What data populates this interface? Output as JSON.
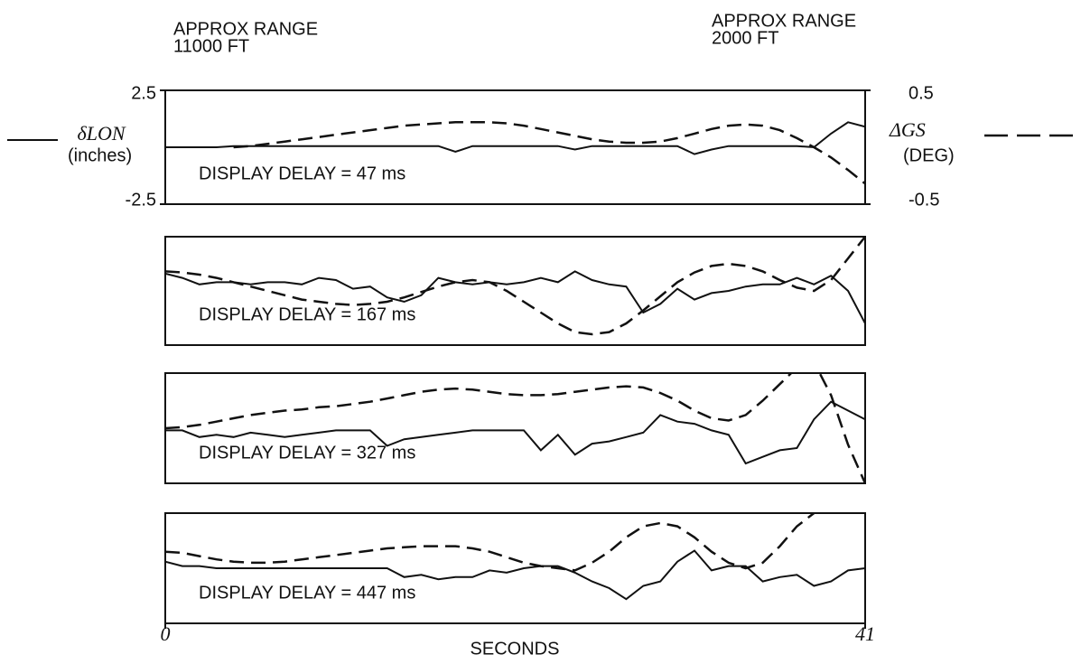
{
  "chart_data": [
    {
      "type": "line",
      "annotations": [
        "APPROX RANGE",
        "11000 FT",
        "APPROX RANGE",
        "2000 FT"
      ],
      "annotation": "DISPLAY DELAY = 47 ms",
      "ylabel": "(inches)",
      "y2label": "(DEG)",
      "xlim": [
        0,
        41
      ],
      "ylim": [
        -2.5,
        2.5
      ],
      "yticks": [
        -2.5,
        2.5
      ],
      "y2lim": [
        -0.5,
        0.5
      ],
      "y2ticks": [
        -0.5,
        0.5
      ],
      "x": [
        0,
        1,
        2,
        3,
        4,
        5,
        6,
        7,
        8,
        9,
        10,
        11,
        12,
        13,
        14,
        15,
        16,
        17,
        18,
        19,
        20,
        21,
        22,
        23,
        24,
        25,
        26,
        27,
        28,
        29,
        30,
        31,
        32,
        33,
        34,
        35,
        36,
        37,
        38,
        39,
        40,
        41
      ],
      "series": [
        {
          "name": "δLON",
          "color": "#111111",
          "line_style": "solid",
          "values": [
            0,
            0,
            0,
            0,
            0.05,
            0.05,
            0.05,
            0.05,
            0.05,
            0.05,
            0.05,
            0.05,
            0.05,
            0.05,
            0.05,
            0.05,
            0.05,
            -0.2,
            0.05,
            0.05,
            0.05,
            0.05,
            0.05,
            0.05,
            -0.1,
            0.05,
            0.05,
            0.05,
            0.05,
            0.05,
            0.05,
            -0.3,
            -0.1,
            0.05,
            0.05,
            0.05,
            0.05,
            0.05,
            0,
            0.6,
            1.1,
            0.9
          ]
        },
        {
          "name": "ΔGS",
          "color": "#111111",
          "line_style": "dashed",
          "axis": "y2",
          "values": [
            null,
            null,
            null,
            null,
            0,
            0.01,
            0.03,
            0.05,
            0.07,
            0.09,
            0.11,
            0.13,
            0.15,
            0.17,
            0.19,
            0.2,
            0.21,
            0.22,
            0.22,
            0.22,
            0.21,
            0.19,
            0.16,
            0.13,
            0.1,
            0.07,
            0.05,
            0.04,
            0.04,
            0.05,
            0.08,
            0.12,
            0.16,
            0.19,
            0.2,
            0.19,
            0.15,
            0.08,
            0,
            -0.09,
            -0.2,
            -0.32
          ]
        }
      ]
    },
    {
      "type": "line",
      "annotation": "DISPLAY DELAY = 167 ms",
      "xlim": [
        0,
        41
      ],
      "ylim": [
        -2.5,
        2.5
      ],
      "y2lim": [
        -0.5,
        0.5
      ],
      "x": [
        0,
        1,
        2,
        3,
        4,
        5,
        6,
        7,
        8,
        9,
        10,
        11,
        12,
        13,
        14,
        15,
        16,
        17,
        18,
        19,
        20,
        21,
        22,
        23,
        24,
        25,
        26,
        27,
        28,
        29,
        30,
        31,
        32,
        33,
        34,
        35,
        36,
        37,
        38,
        39,
        40,
        41
      ],
      "series": [
        {
          "name": "δLON",
          "color": "#111111",
          "line_style": "solid",
          "values": [
            0.8,
            0.6,
            0.3,
            0.4,
            0.4,
            0.3,
            0.4,
            0.4,
            0.3,
            0.6,
            0.5,
            0.1,
            0.2,
            -0.3,
            -0.5,
            -0.2,
            0.6,
            0.4,
            0.3,
            0.4,
            0.3,
            0.4,
            0.6,
            0.4,
            0.9,
            0.5,
            0.3,
            0.2,
            -1.0,
            -0.6,
            0.1,
            -0.4,
            -0.1,
            0,
            0.2,
            0.3,
            0.3,
            0.6,
            0.3,
            0.7,
            0,
            -1.5
          ]
        },
        {
          "name": "ΔGS",
          "color": "#111111",
          "line_style": "dashed",
          "axis": "y2",
          "values": [
            0.18,
            0.17,
            0.15,
            0.12,
            0.08,
            0.04,
            0,
            -0.04,
            -0.08,
            -0.1,
            -0.12,
            -0.13,
            -0.12,
            -0.1,
            -0.06,
            -0.01,
            0.04,
            0.08,
            0.1,
            0.08,
            0,
            -0.1,
            -0.2,
            -0.3,
            -0.38,
            -0.4,
            -0.38,
            -0.3,
            -0.18,
            -0.05,
            0.08,
            0.17,
            0.23,
            0.25,
            0.23,
            0.18,
            0.1,
            0.03,
            0,
            0.1,
            0.3,
            0.5
          ]
        }
      ]
    },
    {
      "type": "line",
      "annotation": "DISPLAY DELAY = 327 ms",
      "xlim": [
        0,
        41
      ],
      "ylim": [
        -2.5,
        2.5
      ],
      "y2lim": [
        -0.5,
        0.5
      ],
      "x": [
        0,
        1,
        2,
        3,
        4,
        5,
        6,
        7,
        8,
        9,
        10,
        11,
        12,
        13,
        14,
        15,
        16,
        17,
        18,
        19,
        20,
        21,
        22,
        23,
        24,
        25,
        26,
        27,
        28,
        29,
        30,
        31,
        32,
        33,
        34,
        35,
        36,
        37,
        38,
        39,
        40,
        41
      ],
      "series": [
        {
          "name": "δLON",
          "color": "#111111",
          "line_style": "solid",
          "values": [
            -0.1,
            -0.1,
            -0.4,
            -0.3,
            -0.4,
            -0.2,
            -0.3,
            -0.4,
            -0.3,
            -0.2,
            -0.1,
            -0.1,
            -0.1,
            -0.8,
            -0.5,
            -0.4,
            -0.3,
            -0.2,
            -0.1,
            -0.1,
            -0.1,
            -0.1,
            -1.0,
            -0.3,
            -1.2,
            -0.7,
            -0.6,
            -0.4,
            -0.2,
            0.6,
            0.3,
            0.2,
            -0.1,
            -0.3,
            -1.6,
            -1.3,
            -1.0,
            -0.9,
            0.4,
            1.2,
            0.8,
            0.4
          ]
        },
        {
          "name": "ΔGS",
          "color": "#111111",
          "line_style": "dashed",
          "axis": "y2",
          "values": [
            0,
            0.01,
            0.03,
            0.06,
            0.09,
            0.12,
            0.14,
            0.16,
            0.17,
            0.19,
            0.2,
            0.22,
            0.24,
            0.27,
            0.3,
            0.33,
            0.35,
            0.36,
            0.35,
            0.33,
            0.31,
            0.3,
            0.3,
            0.31,
            0.33,
            0.35,
            0.37,
            0.38,
            0.37,
            0.32,
            0.25,
            0.16,
            0.09,
            0.07,
            0.12,
            0.25,
            0.4,
            0.55,
            0.6,
            0.3,
            -0.15,
            -0.5
          ]
        }
      ]
    },
    {
      "type": "line",
      "annotation": "DISPLAY DELAY = 447 ms",
      "xlabel": "SECONDS",
      "xlim": [
        0,
        41
      ],
      "xticks": [
        0,
        41
      ],
      "ylim": [
        -2.5,
        2.5
      ],
      "y2lim": [
        -0.5,
        0.5
      ],
      "x": [
        0,
        1,
        2,
        3,
        4,
        5,
        6,
        7,
        8,
        9,
        10,
        11,
        12,
        13,
        14,
        15,
        16,
        17,
        18,
        19,
        20,
        21,
        22,
        23,
        24,
        25,
        26,
        27,
        28,
        29,
        30,
        31,
        32,
        33,
        34,
        35,
        36,
        37,
        38,
        39,
        40,
        41
      ],
      "series": [
        {
          "name": "δLON",
          "color": "#111111",
          "line_style": "solid",
          "values": [
            0.3,
            0.1,
            0.1,
            0,
            0,
            0,
            0,
            0,
            0,
            0,
            0,
            0,
            0,
            0,
            -0.4,
            -0.3,
            -0.5,
            -0.4,
            -0.4,
            -0.1,
            -0.2,
            0,
            0.1,
            0.1,
            -0.2,
            -0.6,
            -0.9,
            -1.4,
            -0.8,
            -0.6,
            0.3,
            0.8,
            -0.1,
            0.1,
            0.1,
            -0.6,
            -0.4,
            -0.3,
            -0.8,
            -0.6,
            -0.1,
            0
          ]
        },
        {
          "name": "ΔGS",
          "color": "#111111",
          "line_style": "dashed",
          "axis": "y2",
          "values": [
            0.15,
            0.14,
            0.11,
            0.08,
            0.06,
            0.05,
            0.05,
            0.06,
            0.08,
            0.1,
            0.12,
            0.14,
            0.16,
            0.18,
            0.19,
            0.2,
            0.2,
            0.2,
            0.18,
            0.15,
            0.1,
            0.05,
            0.02,
            0,
            -0.02,
            0.05,
            0.15,
            0.28,
            0.38,
            0.41,
            0.38,
            0.28,
            0.15,
            0.05,
            0,
            0.05,
            0.2,
            0.38,
            0.5,
            0.65,
            null,
            null
          ]
        }
      ]
    }
  ]
}
